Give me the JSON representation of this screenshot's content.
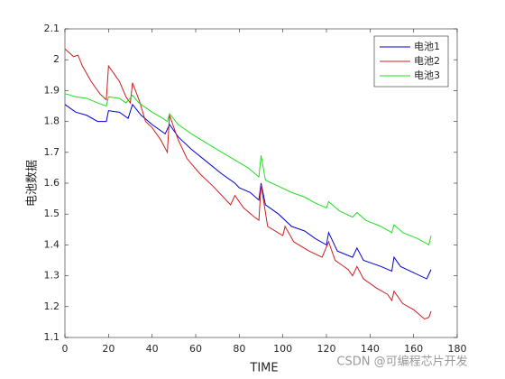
{
  "chart_data": {
    "type": "line",
    "xlabel": "TIME",
    "ylabel": "电池数据",
    "xlim": [
      0,
      180
    ],
    "xticks": [
      0,
      20,
      40,
      60,
      80,
      100,
      120,
      140,
      160,
      180
    ],
    "ylim": [
      1.1,
      2.1
    ],
    "yticks": [
      1.1,
      1.2,
      1.3,
      1.4,
      1.5,
      1.6,
      1.7,
      1.8,
      1.9,
      2,
      2.1
    ],
    "legend": "upper right",
    "grid": false,
    "watermark": "CSDN @可编程芯片开发",
    "series": [
      {
        "name": "电池1",
        "color": "#0000cc",
        "x": [
          0,
          5,
          10,
          15,
          19,
          20,
          25,
          29,
          31,
          35,
          40,
          44,
          46,
          48,
          52,
          58,
          65,
          72,
          78,
          80,
          85,
          89,
          90,
          92,
          98,
          104,
          110,
          115,
          120,
          121,
          125,
          132,
          134,
          137,
          145,
          150,
          151,
          154,
          160,
          166,
          168
        ],
        "values": [
          1.855,
          1.83,
          1.82,
          1.8,
          1.8,
          1.835,
          1.83,
          1.81,
          1.855,
          1.82,
          1.79,
          1.77,
          1.76,
          1.79,
          1.75,
          1.71,
          1.67,
          1.63,
          1.6,
          1.585,
          1.57,
          1.545,
          1.6,
          1.53,
          1.5,
          1.46,
          1.445,
          1.42,
          1.4,
          1.44,
          1.38,
          1.36,
          1.39,
          1.35,
          1.33,
          1.315,
          1.36,
          1.33,
          1.31,
          1.29,
          1.32
        ]
      },
      {
        "name": "电池2",
        "color": "#cc1f1f",
        "x": [
          0,
          4,
          6,
          8,
          12,
          16,
          19,
          20,
          23,
          25,
          28,
          30,
          31,
          34,
          37,
          40,
          44,
          47,
          48,
          52,
          56,
          62,
          68,
          72,
          76,
          78,
          82,
          87,
          89,
          90,
          93,
          100,
          101,
          105,
          112,
          118,
          121,
          124,
          130,
          132,
          134,
          137,
          143,
          148,
          150,
          151,
          155,
          160,
          165,
          167,
          168
        ],
        "values": [
          2.035,
          2.01,
          2.015,
          1.98,
          1.93,
          1.89,
          1.87,
          1.98,
          1.95,
          1.93,
          1.88,
          1.86,
          1.925,
          1.87,
          1.8,
          1.78,
          1.74,
          1.7,
          1.82,
          1.74,
          1.68,
          1.63,
          1.59,
          1.56,
          1.53,
          1.56,
          1.52,
          1.49,
          1.48,
          1.595,
          1.46,
          1.43,
          1.46,
          1.41,
          1.38,
          1.36,
          1.41,
          1.35,
          1.32,
          1.3,
          1.33,
          1.29,
          1.26,
          1.24,
          1.22,
          1.25,
          1.21,
          1.19,
          1.16,
          1.165,
          1.185
        ]
      },
      {
        "name": "电池3",
        "color": "#22dd22",
        "x": [
          0,
          5,
          10,
          15,
          19,
          20,
          25,
          28,
          31,
          34,
          40,
          45,
          47,
          48,
          52,
          58,
          65,
          72,
          78,
          84,
          89,
          90,
          92,
          98,
          104,
          110,
          115,
          120,
          121,
          126,
          132,
          134,
          138,
          145,
          150,
          151,
          155,
          162,
          167,
          168
        ],
        "values": [
          1.89,
          1.88,
          1.875,
          1.86,
          1.85,
          1.88,
          1.875,
          1.86,
          1.885,
          1.86,
          1.83,
          1.81,
          1.8,
          1.825,
          1.79,
          1.76,
          1.73,
          1.7,
          1.675,
          1.65,
          1.62,
          1.69,
          1.61,
          1.59,
          1.57,
          1.555,
          1.535,
          1.52,
          1.54,
          1.51,
          1.49,
          1.505,
          1.48,
          1.46,
          1.44,
          1.465,
          1.44,
          1.42,
          1.4,
          1.43
        ]
      }
    ]
  }
}
